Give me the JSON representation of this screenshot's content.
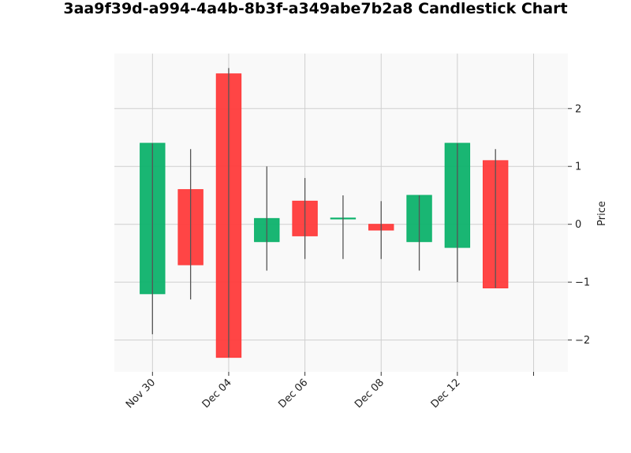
{
  "chart_data": {
    "type": "candlestick",
    "title": "3aa9f39d-a994-4a4b-8b3f-a349abe7b2a8 Candlestick Chart",
    "ylabel": "Price",
    "xlabel": "",
    "ylim": [
      -2.55,
      2.95
    ],
    "yticks": [
      -2,
      -1,
      0,
      1,
      2
    ],
    "yticks_labels": [
      "−2",
      "−1",
      "0",
      "1",
      "2"
    ],
    "xlim": [
      -1,
      10.9
    ],
    "xticks": [
      {
        "i": 0,
        "label": "Nov 30"
      },
      {
        "i": 2,
        "label": "Dec 04"
      },
      {
        "i": 4,
        "label": "Dec 06"
      },
      {
        "i": 6,
        "label": "Dec 08"
      },
      {
        "i": 8,
        "label": "Dec 12"
      },
      {
        "i": 10,
        "label": ""
      }
    ],
    "grid": true,
    "up_color": "#0db26b",
    "down_color": "#ff3b3b",
    "background": "#f9f9f9",
    "candles": [
      {
        "open": -1.2,
        "high": 1.4,
        "low": -1.9,
        "close": 1.4
      },
      {
        "open": 0.6,
        "high": 1.3,
        "low": -1.3,
        "close": -0.7
      },
      {
        "open": 2.6,
        "high": 2.7,
        "low": -2.3,
        "close": -2.3
      },
      {
        "open": -0.3,
        "high": 1.0,
        "low": -0.8,
        "close": 0.1
      },
      {
        "open": 0.4,
        "high": 0.8,
        "low": -0.6,
        "close": -0.2
      },
      {
        "open": 0.1,
        "high": 0.5,
        "low": -0.6,
        "close": 0.1
      },
      {
        "open": 0.0,
        "high": 0.4,
        "low": -0.6,
        "close": -0.1
      },
      {
        "open": -0.3,
        "high": 0.5,
        "low": -0.8,
        "close": 0.5
      },
      {
        "open": -0.4,
        "high": 1.4,
        "low": -1.0,
        "close": 1.4
      },
      {
        "open": 1.1,
        "high": 1.3,
        "low": -1.1,
        "close": -1.1
      }
    ]
  }
}
